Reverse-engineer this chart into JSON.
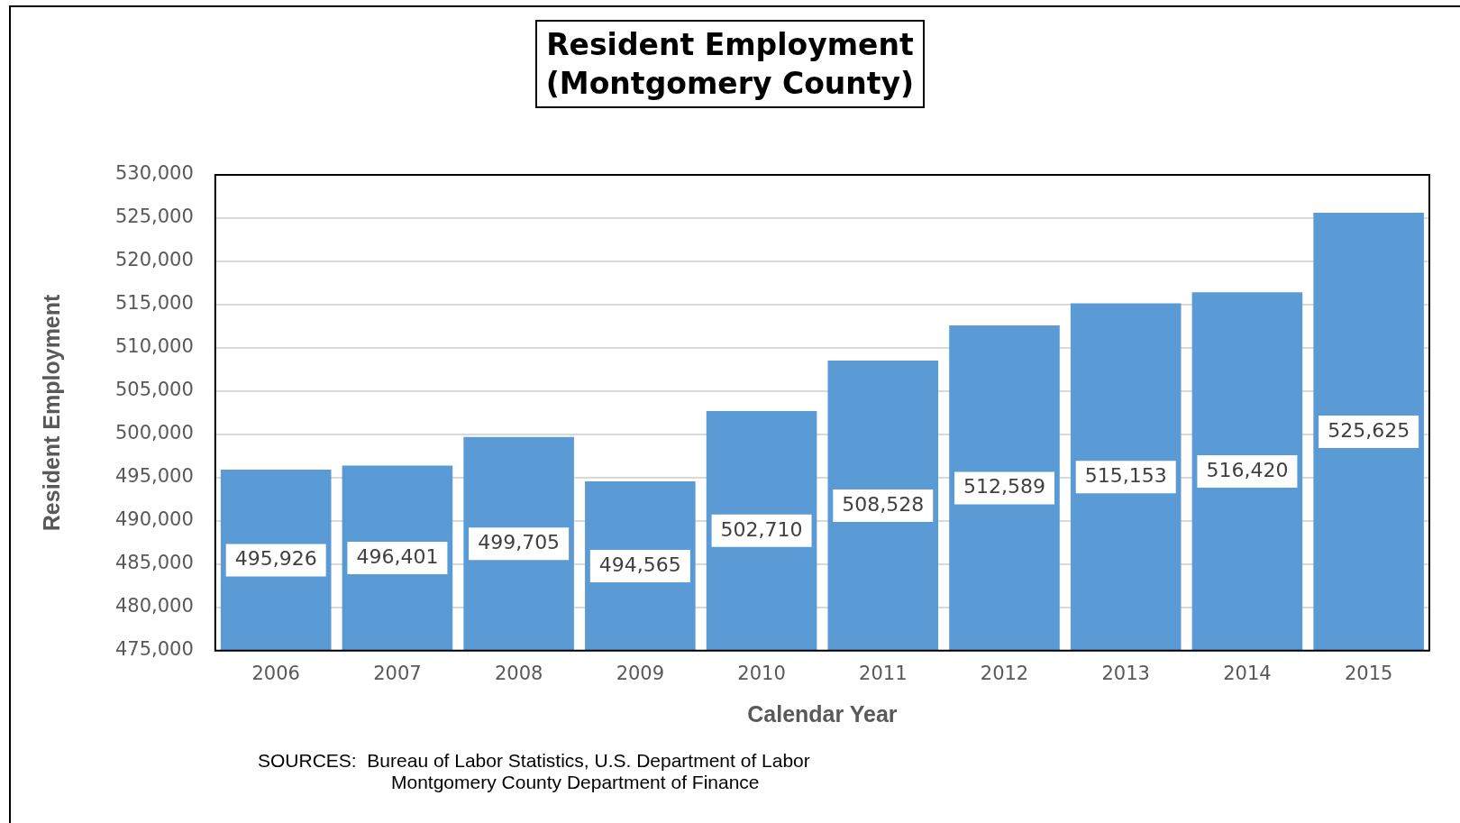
{
  "chart_data": {
    "type": "bar",
    "title": "Resident Employment\n(Montgomery County)",
    "xlabel": "Calendar Year",
    "ylabel": "Resident Employment",
    "categories": [
      "2006",
      "2007",
      "2008",
      "2009",
      "2010",
      "2011",
      "2012",
      "2013",
      "2014",
      "2015"
    ],
    "values": [
      495926,
      496401,
      499705,
      494565,
      502710,
      508528,
      512589,
      515153,
      516420,
      525625
    ],
    "color": "#5b9bd5",
    "ylim": [
      475000,
      530000
    ],
    "yticks": [
      {
        "value": 475000,
        "label": "475,000"
      },
      {
        "value": 480000,
        "label": "480,000"
      },
      {
        "value": 485000,
        "label": "485,000"
      },
      {
        "value": 490000,
        "label": "490,000"
      },
      {
        "value": 495000,
        "label": "495,000"
      },
      {
        "value": 500000,
        "label": "500,000"
      },
      {
        "value": 505000,
        "label": "505,000"
      },
      {
        "value": 510000,
        "label": "510,000"
      },
      {
        "value": 515000,
        "label": "515,000"
      },
      {
        "value": 520000,
        "label": "520,000"
      },
      {
        "value": 525000,
        "label": "525,000"
      },
      {
        "value": 530000,
        "label": "530,000"
      }
    ],
    "value_labels": [
      "495,926",
      "496,401",
      "499,705",
      "494,565",
      "502,710",
      "508,528",
      "512,589",
      "515,153",
      "516,420",
      "525,625"
    ],
    "grid": "y",
    "legend": false,
    "annotations": [
      "SOURCES:  Bureau of Labor Statistics, U.S. Department of Labor\nMontgomery County Department of Finance"
    ]
  }
}
